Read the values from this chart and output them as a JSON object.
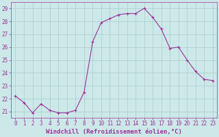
{
  "x": [
    0,
    1,
    2,
    3,
    4,
    5,
    6,
    7,
    8,
    9,
    10,
    11,
    12,
    13,
    14,
    15,
    16,
    17,
    18,
    19,
    20,
    21,
    22,
    23
  ],
  "y": [
    22.2,
    21.7,
    20.9,
    21.6,
    21.1,
    20.9,
    20.9,
    21.1,
    22.5,
    26.4,
    27.9,
    28.2,
    28.5,
    28.6,
    28.6,
    29.0,
    28.3,
    27.4,
    25.9,
    26.0,
    25.0,
    24.1,
    23.5,
    23.4
  ],
  "line_color": "#993399",
  "marker": "P",
  "marker_size": 2.5,
  "bg_color": "#cce8e8",
  "grid_color": "#aacccc",
  "xlim": [
    -0.5,
    23.5
  ],
  "ylim": [
    20.5,
    29.5
  ],
  "yticks": [
    21,
    22,
    23,
    24,
    25,
    26,
    27,
    28,
    29
  ],
  "xticks": [
    0,
    1,
    2,
    3,
    4,
    5,
    6,
    7,
    8,
    9,
    10,
    11,
    12,
    13,
    14,
    15,
    16,
    17,
    18,
    19,
    20,
    21,
    22,
    23
  ],
  "xlabel": "Windchill (Refroidissement éolien,°C)",
  "tick_color": "#993399",
  "font_size_xlabel": 6.5,
  "font_size_ticks": 5.5
}
